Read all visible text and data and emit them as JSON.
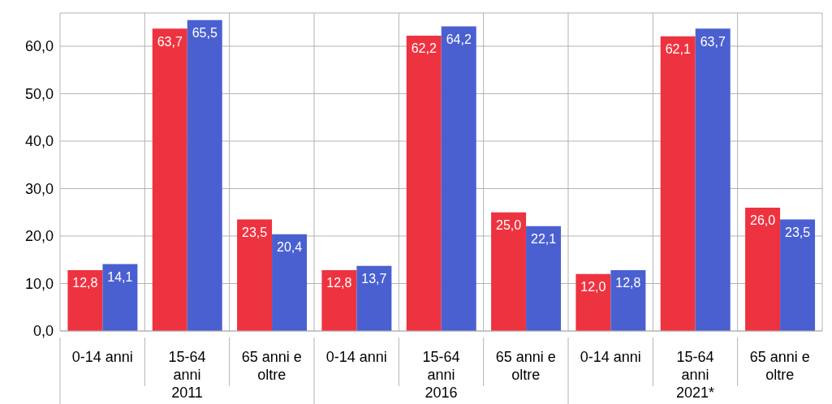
{
  "chart_data": {
    "type": "bar",
    "categories": [
      "0-14 anni",
      "15-64 anni",
      "65 anni e oltre",
      "0-14 anni",
      "15-64 anni",
      "65 anni e oltre",
      "0-14 anni",
      "15-64 anni",
      "65 anni e oltre"
    ],
    "series": [
      {
        "color": "#ee3340",
        "values": [
          12.8,
          63.7,
          23.5,
          12.8,
          62.2,
          25.0,
          12.0,
          62.1,
          26.0
        ],
        "value_labels": [
          "12,8",
          "63,7",
          "23,5",
          "12,8",
          "62,2",
          "25,0",
          "12,0",
          "62,1",
          "26,0"
        ]
      },
      {
        "color": "#4a60d0",
        "values": [
          14.1,
          65.5,
          20.4,
          13.7,
          64.2,
          22.1,
          12.8,
          63.7,
          23.5
        ],
        "value_labels": [
          "14,1",
          "65,5",
          "20,4",
          "13,7",
          "64,2",
          "22,1",
          "12,8",
          "63,7",
          "23,5"
        ]
      }
    ],
    "annotations": [
      "2011",
      "2016",
      "2021*"
    ],
    "ylim": [
      0,
      67
    ],
    "yticks": [
      {
        "value": 0,
        "label": "0,0"
      },
      {
        "value": 10,
        "label": "10,0"
      },
      {
        "value": 20,
        "label": "20,0"
      },
      {
        "value": 30,
        "label": "30,0"
      },
      {
        "value": 40,
        "label": "40,0"
      },
      {
        "value": 50,
        "label": "50,0"
      },
      {
        "value": 60,
        "label": "60,0"
      }
    ],
    "grid": true
  }
}
